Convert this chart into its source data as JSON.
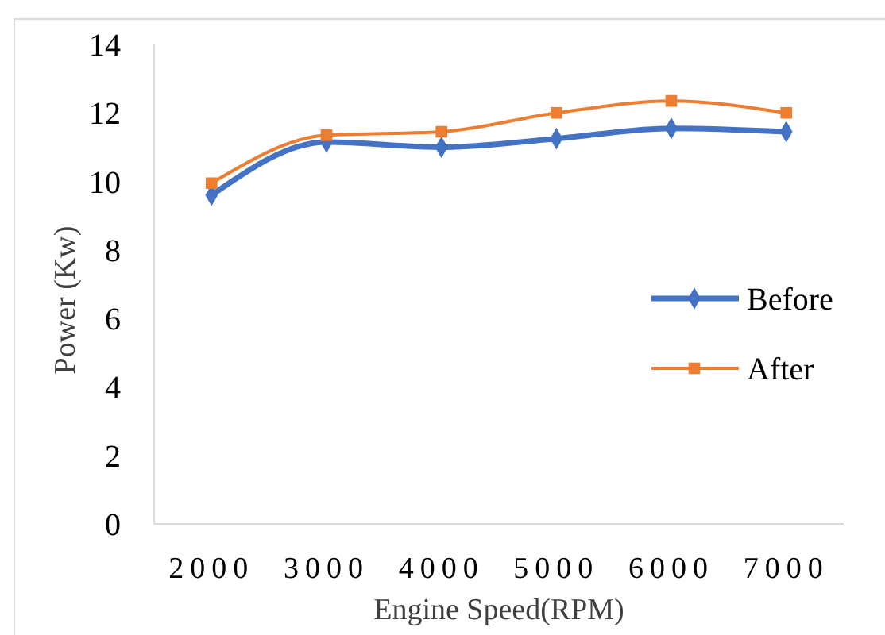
{
  "chart_data": {
    "type": "line",
    "xlabel": "Engine Speed(RPM)",
    "ylabel": "Power (Kw)",
    "categories": [
      "2000",
      "3000",
      "4000",
      "5000",
      "6000",
      "7000"
    ],
    "series": [
      {
        "name": "Before",
        "color": "#4472c4",
        "marker": "diamond",
        "values": [
          9.6,
          11.15,
          11.0,
          11.25,
          11.55,
          11.45
        ]
      },
      {
        "name": "After",
        "color": "#ed7d31",
        "marker": "square",
        "values": [
          9.95,
          11.35,
          11.45,
          12.0,
          12.35,
          12.0
        ]
      }
    ],
    "ylim": [
      0,
      14
    ],
    "yticks": [
      0,
      2,
      4,
      6,
      8,
      10,
      12,
      14
    ],
    "grid": false,
    "legend": "right"
  }
}
